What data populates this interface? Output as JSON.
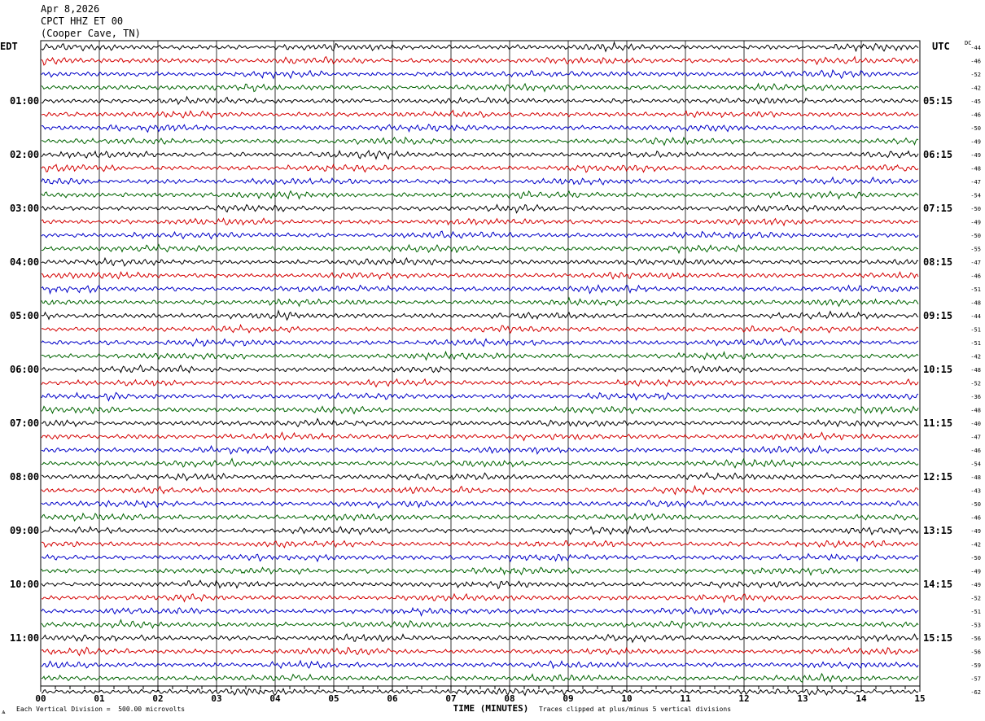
{
  "header": {
    "date": "Apr 8,2026",
    "station": "CPCT HHZ ET 00",
    "location": "(Cooper Cave, TN)"
  },
  "left_zone": "EDT",
  "right_zone": "UTC",
  "dc_label": "DC",
  "footer": {
    "scale_note": "Each Vertical Division =  500.00 microvolts",
    "clip_note": "Traces clipped at plus/minus 5 vertical divisions",
    "mark": "ѧ"
  },
  "chart_data": {
    "type": "line",
    "title": "",
    "xlabel": "TIME (MINUTES)",
    "ylabel": "",
    "xlim": [
      0,
      15
    ],
    "x_ticks": [
      "00",
      "01",
      "02",
      "03",
      "04",
      "05",
      "06",
      "07",
      "08",
      "09",
      "10",
      "11",
      "12",
      "13",
      "14",
      "15"
    ],
    "trace_colors": [
      "#000000",
      "#d40000",
      "#0000c8",
      "#006400"
    ],
    "left_hour_labels": [
      "01:00",
      "02:00",
      "03:00",
      "04:00",
      "05:00",
      "06:00",
      "07:00",
      "08:00",
      "09:00",
      "10:00",
      "11:00"
    ],
    "right_hour_labels": [
      "05:15",
      "06:15",
      "07:15",
      "08:15",
      "09:15",
      "10:15",
      "11:15",
      "12:15",
      "13:15",
      "14:15",
      "15:15"
    ],
    "dc_offsets": [
      -44,
      -46,
      -52,
      -42,
      -45,
      -46,
      -50,
      -49,
      -49,
      -48,
      -47,
      -54,
      -50,
      -49,
      -50,
      -55,
      -47,
      -46,
      -51,
      -48,
      -44,
      -51,
      -51,
      -42,
      -48,
      -52,
      -36,
      -48,
      -40,
      -47,
      -46,
      -54,
      -48,
      -43,
      -50,
      -46,
      -49,
      -42,
      -50,
      -49,
      -49,
      -52,
      -51,
      -53,
      -56,
      -56,
      -59,
      -57,
      -62
    ],
    "grid": true
  }
}
